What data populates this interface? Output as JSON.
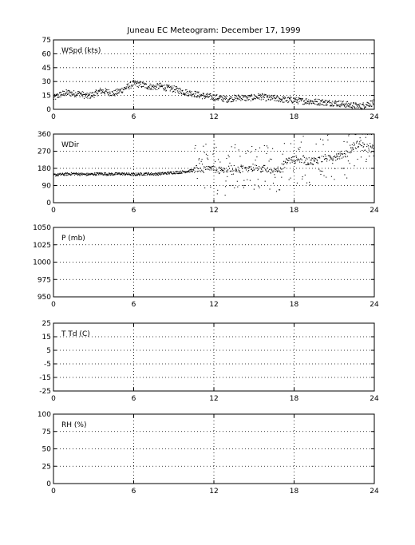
{
  "title": "Juneau EC Meteogram:  December 17, 1999",
  "chart_data": [
    {
      "type": "scatter",
      "panel_label": "WSpd (kts)",
      "xlim": [
        0,
        24
      ],
      "ylim": [
        0,
        75
      ],
      "x_ticks": [
        0,
        6,
        12,
        18,
        24
      ],
      "y_ticks": [
        0,
        15,
        30,
        45,
        60,
        75
      ],
      "grid": true,
      "series": [
        {
          "x": [
            0,
            0.5,
            1,
            1.5,
            2,
            2.5,
            3,
            3.5,
            4,
            4.5,
            5,
            5.5,
            6,
            6.5,
            7,
            7.5,
            8,
            8.5,
            9,
            9.5,
            10,
            10.5,
            11,
            11.5,
            12,
            12.5,
            13,
            13.5,
            14,
            14.5,
            15,
            15.5,
            16,
            16.5,
            17,
            17.5,
            18,
            18.5,
            19,
            19.5,
            20,
            20.5,
            21,
            21.5,
            22,
            22.5,
            23,
            23.5,
            24
          ],
          "y": [
            12,
            16,
            18,
            17,
            17,
            14,
            16,
            20,
            19,
            17,
            20,
            24,
            28,
            27,
            25,
            24,
            25,
            23,
            22,
            20,
            18,
            17,
            15,
            14,
            13,
            12,
            11,
            12,
            13,
            12,
            13,
            14,
            12,
            12,
            11,
            10,
            10,
            9,
            9,
            8,
            8,
            7,
            7,
            6,
            5,
            4,
            3,
            6,
            7
          ]
        }
      ]
    },
    {
      "type": "scatter",
      "panel_label": "WDir",
      "xlim": [
        0,
        24
      ],
      "ylim": [
        0,
        360
      ],
      "x_ticks": [
        0,
        6,
        12,
        18,
        24
      ],
      "y_ticks": [
        0,
        90,
        180,
        270,
        360
      ],
      "grid": true,
      "series": [
        {
          "x": [
            0,
            0.5,
            1,
            1.5,
            2,
            2.5,
            3,
            3.5,
            4,
            4.5,
            5,
            5.5,
            6,
            6.5,
            7,
            7.5,
            8,
            8.5,
            9,
            9.5,
            10,
            10.5,
            11,
            11.5,
            12,
            12.5,
            13,
            13.5,
            14,
            14.5,
            15,
            15.5,
            16,
            16.5,
            17,
            17.5,
            18,
            18.5,
            19,
            19.5,
            20,
            20.5,
            21,
            21.5,
            22,
            22.5,
            23,
            23.5,
            24
          ],
          "y": [
            145,
            148,
            150,
            152,
            150,
            148,
            150,
            152,
            150,
            150,
            152,
            150,
            148,
            150,
            152,
            150,
            152,
            155,
            158,
            160,
            165,
            170,
            185,
            175,
            180,
            165,
            170,
            180,
            175,
            175,
            185,
            180,
            175,
            165,
            180,
            220,
            225,
            230,
            215,
            220,
            230,
            235,
            240,
            250,
            260,
            300,
            310,
            280,
            285
          ]
        }
      ]
    },
    {
      "type": "scatter",
      "panel_label": "P (mb)",
      "xlim": [
        0,
        24
      ],
      "ylim": [
        950,
        1050
      ],
      "x_ticks": [
        0,
        6,
        12,
        18,
        24
      ],
      "y_ticks": [
        950,
        975,
        1000,
        1025,
        1050
      ],
      "grid": true,
      "series": []
    },
    {
      "type": "scatter",
      "panel_label": "T Td (C)",
      "xlim": [
        0,
        24
      ],
      "ylim": [
        -25,
        25
      ],
      "x_ticks": [
        0,
        6,
        12,
        18,
        24
      ],
      "y_ticks": [
        -25,
        -15,
        -5,
        5,
        15,
        25
      ],
      "grid": true,
      "series": []
    },
    {
      "type": "scatter",
      "panel_label": "RH (%)",
      "xlim": [
        0,
        24
      ],
      "ylim": [
        0,
        100
      ],
      "x_ticks": [
        0,
        6,
        12,
        18,
        24
      ],
      "y_ticks": [
        0,
        25,
        50,
        75,
        100
      ],
      "grid": true,
      "series": []
    }
  ]
}
